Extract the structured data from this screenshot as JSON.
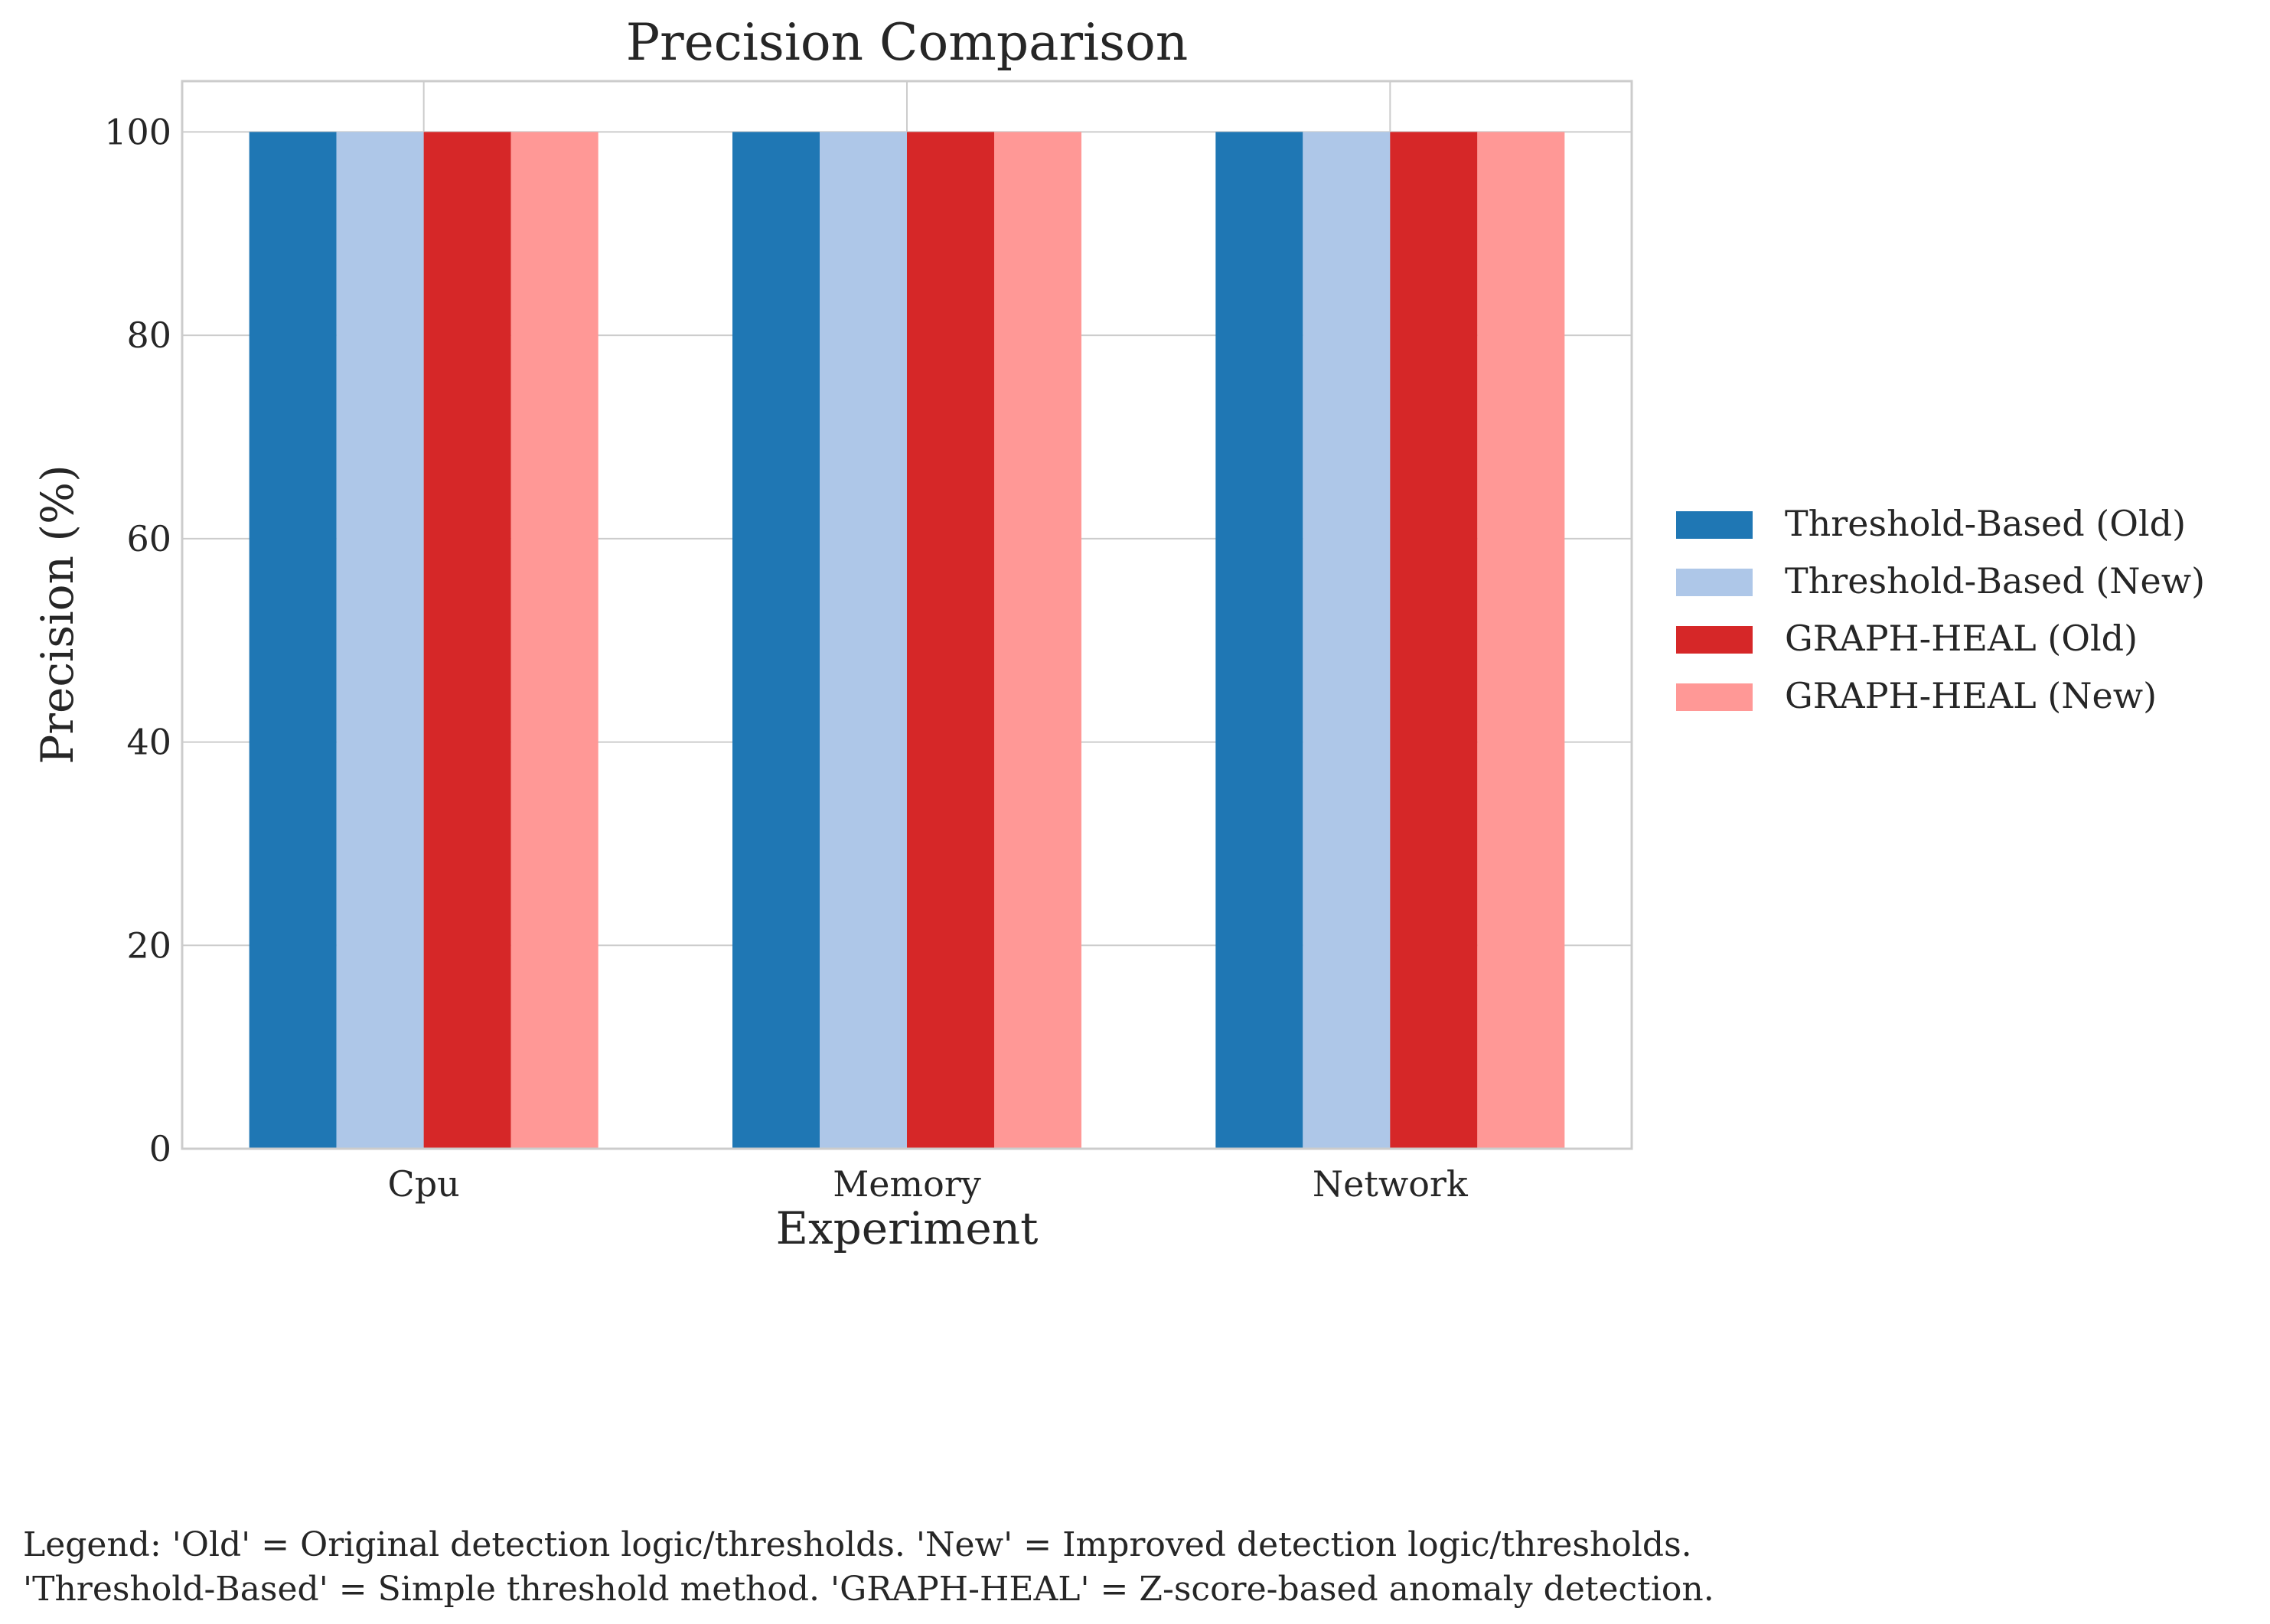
{
  "chart_data": {
    "type": "bar",
    "title": "Precision Comparison",
    "xlabel": "Experiment",
    "ylabel": "Precision (%)",
    "categories": [
      "Cpu",
      "Memory",
      "Network"
    ],
    "series": [
      {
        "name": "Threshold-Based (Old)",
        "color": "#1f77b4",
        "values": [
          100,
          100,
          100
        ]
      },
      {
        "name": "Threshold-Based (New)",
        "color": "#aec7e8",
        "values": [
          100,
          100,
          100
        ]
      },
      {
        "name": "GRAPH-HEAL (Old)",
        "color": "#d62728",
        "values": [
          100,
          100,
          100
        ]
      },
      {
        "name": "GRAPH-HEAL (New)",
        "color": "#ff9896",
        "values": [
          100,
          100,
          100
        ]
      }
    ],
    "ylim": [
      0,
      105
    ],
    "yticks": [
      0,
      20,
      40,
      60,
      80,
      100
    ],
    "grid": true,
    "legend_position": "right"
  },
  "footnote": {
    "line1": "Legend: 'Old' = Original detection logic/thresholds. 'New' = Improved detection logic/thresholds.",
    "line2": "'Threshold-Based' = Simple threshold method. 'GRAPH-HEAL' = Z-score-based anomaly detection."
  }
}
